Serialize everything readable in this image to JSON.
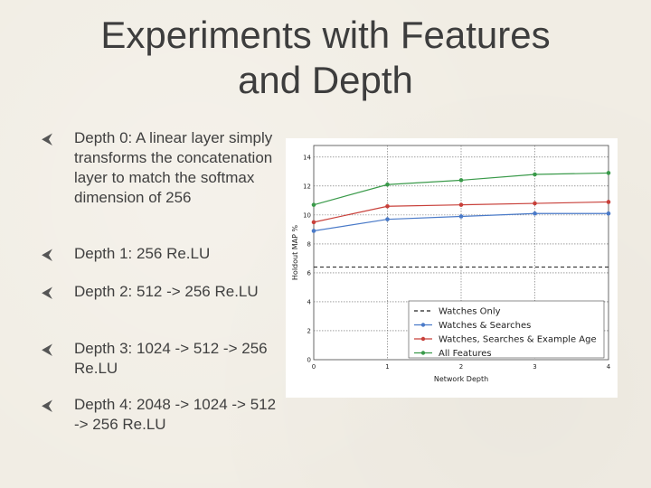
{
  "slide": {
    "title_line1": "Experiments with Features",
    "title_line2": "and Depth",
    "bullet_icon": "arrow-left-icon",
    "bullets": [
      {
        "text": "Depth 0: A linear layer simply transforms the concatenation layer to match the softmax dimension of 256"
      },
      {
        "text": "Depth 1: 256 Re.LU"
      },
      {
        "text": "Depth 2: 512 -> 256 Re.LU"
      },
      {
        "text": "Depth 3: 1024 -> 512 -> 256 Re.LU"
      },
      {
        "text": "Depth 4: 2048 -> 1024 -> 512 -> 256 Re.LU"
      }
    ]
  },
  "chart_data": {
    "type": "line",
    "xlabel": "Network Depth",
    "ylabel": "Holdout MAP %",
    "x": [
      0,
      1,
      2,
      3,
      4
    ],
    "xlim": [
      0,
      4
    ],
    "ylim": [
      0,
      14.8
    ],
    "xticks": [
      "0",
      "1",
      "2",
      "3",
      "4"
    ],
    "yticks": [
      "0",
      "2",
      "4",
      "6",
      "8",
      "10",
      "12",
      "14"
    ],
    "grid": true,
    "legend_position": "bottom-right",
    "series": [
      {
        "name": "Watches Only",
        "style": "dashed",
        "color": "#222222",
        "marker": false,
        "values": [
          6.4,
          6.4,
          6.4,
          6.4,
          6.4
        ]
      },
      {
        "name": "Watches & Searches",
        "style": "solid",
        "color": "#4a7ac8",
        "marker": true,
        "values": [
          8.9,
          9.7,
          9.9,
          10.1,
          10.1
        ]
      },
      {
        "name": "Watches, Searches & Example Age",
        "style": "solid",
        "color": "#c8403a",
        "marker": true,
        "values": [
          9.5,
          10.6,
          10.7,
          10.8,
          10.9
        ]
      },
      {
        "name": "All Features",
        "style": "solid",
        "color": "#3a9a4a",
        "marker": true,
        "values": [
          10.7,
          12.1,
          12.4,
          12.8,
          12.9
        ]
      }
    ]
  }
}
